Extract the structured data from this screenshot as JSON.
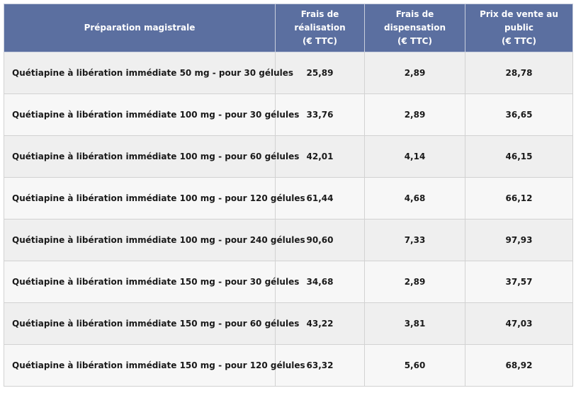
{
  "table": {
    "headers": {
      "preparation": "Préparation magistrale",
      "frais_realisation": [
        "Frais de réalisation",
        "(€ TTC)"
      ],
      "frais_dispensation": [
        "Frais de dispensation",
        "(€ TTC)"
      ],
      "prix_vente": [
        "Prix de vente au public",
        "(€ TTC)"
      ]
    },
    "rows": [
      {
        "label": "Quétiapine à libération immédiate 50 mg - pour 30 gélules",
        "realisation": "25,89",
        "dispensation": "2,89",
        "prix": "28,78"
      },
      {
        "label": "Quétiapine à libération immédiate 100 mg - pour 30 gélules",
        "realisation": "33,76",
        "dispensation": "2,89",
        "prix": "36,65"
      },
      {
        "label": "Quétiapine à libération immédiate 100 mg - pour 60 gélules",
        "realisation": "42,01",
        "dispensation": "4,14",
        "prix": "46,15"
      },
      {
        "label": "Quétiapine à libération immédiate 100 mg - pour 120 gélules",
        "realisation": "61,44",
        "dispensation": "4,68",
        "prix": "66,12"
      },
      {
        "label": "Quétiapine à libération immédiate 100 mg - pour 240 gélules",
        "realisation": "90,60",
        "dispensation": "7,33",
        "prix": "97,93"
      },
      {
        "label": "Quétiapine à libération immédiate 150 mg - pour 30 gélules",
        "realisation": "34,68",
        "dispensation": "2,89",
        "prix": "37,57"
      },
      {
        "label": "Quétiapine à libération immédiate 150 mg - pour 60 gélules",
        "realisation": "43,22",
        "dispensation": "3,81",
        "prix": "47,03"
      },
      {
        "label": "Quétiapine à libération immédiate 150 mg - pour 120 gélules",
        "realisation": "63,32",
        "dispensation": "5,60",
        "prix": "68,92"
      }
    ]
  },
  "colors": {
    "header_bg": "#5b6fa0",
    "row_odd": "#efefef",
    "row_even": "#f7f7f7"
  }
}
